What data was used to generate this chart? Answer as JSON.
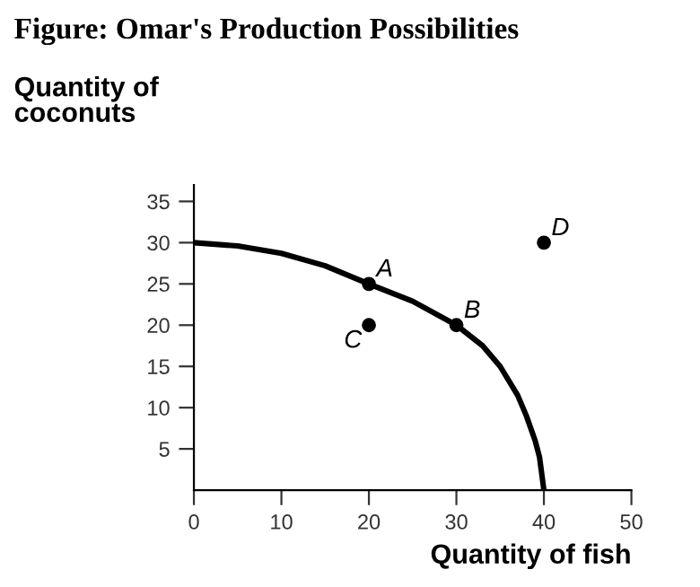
{
  "chart_data": {
    "type": "line",
    "title": "Figure: Omar's Production Possibilities",
    "xlabel": "Quantity of fish",
    "ylabel": "Quantity of\ncoconuts",
    "series": [
      {
        "color": "#000000",
        "x": [
          0,
          5,
          10,
          15,
          20,
          25,
          30,
          33,
          35,
          37,
          38,
          39,
          39.5,
          40
        ],
        "values": [
          30,
          29.6,
          28.7,
          27.2,
          25,
          22.9,
          20,
          17.5,
          15,
          11.5,
          9,
          6,
          4,
          0
        ],
        "marker": "none"
      },
      {
        "type": "scatter",
        "color": "#000000",
        "x": [
          20,
          30,
          20,
          40
        ],
        "values": [
          25,
          20,
          20,
          30
        ],
        "marker": "circle"
      }
    ],
    "annotations": [
      {
        "text": "A",
        "x": 20,
        "y": 25
      },
      {
        "text": "B",
        "x": 30,
        "y": 20
      },
      {
        "text": "C",
        "x": 20,
        "y": 20
      },
      {
        "text": "D",
        "x": 40,
        "y": 30
      }
    ],
    "xlim": [
      0,
      50
    ],
    "ylim": [
      0,
      37
    ],
    "xticks": [
      0,
      10,
      20,
      30,
      40,
      50
    ],
    "yticks": [
      5,
      10,
      15,
      20,
      25,
      30,
      35
    ],
    "grid": false,
    "legend": false
  }
}
